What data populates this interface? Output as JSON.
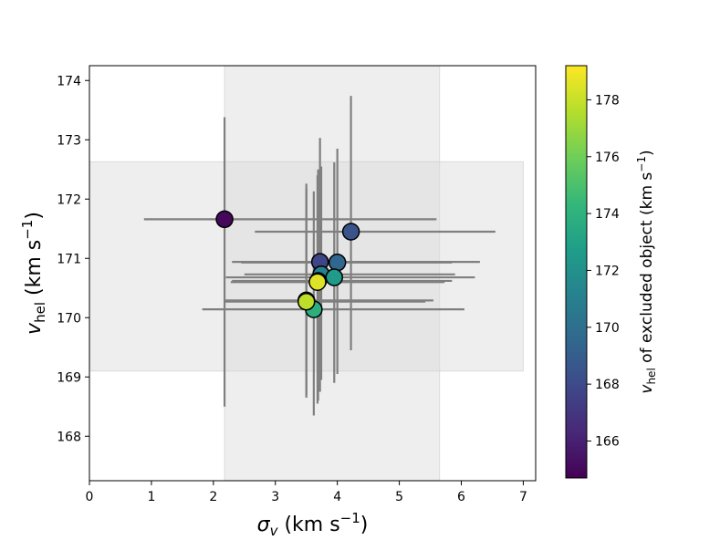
{
  "chart_data": {
    "type": "scatter",
    "xlabel": {
      "symbol": "σ",
      "sub": "v",
      "units_pre": "(km s",
      "units_sup": "−1",
      "units_post": ")"
    },
    "ylabel": {
      "symbol": "v",
      "sub": "hel",
      "units_pre": "(km s",
      "units_sup": "−1",
      "units_post": ")"
    },
    "xlim": [
      0,
      7.2
    ],
    "ylim": [
      167.25,
      174.25
    ],
    "x_ticks": [
      0,
      1,
      2,
      3,
      4,
      5,
      6,
      7
    ],
    "y_ticks": [
      168,
      169,
      170,
      171,
      172,
      173,
      174
    ],
    "shaded_regions": {
      "x_band": [
        2.18,
        5.65
      ],
      "y_band": [
        169.1,
        172.63
      ]
    },
    "colorbar": {
      "colormap": "viridis",
      "range": [
        164.7,
        179.2
      ],
      "ticks": [
        166,
        168,
        170,
        172,
        174,
        176,
        178
      ],
      "label": {
        "symbol": "v",
        "sub": "hel",
        "text": " of excluded object (km s",
        "sup": "−1",
        "post": ")"
      }
    },
    "points": [
      {
        "x": 2.18,
        "y": 171.66,
        "xerr": [
          0.88,
          5.6
        ],
        "yerr": [
          168.5,
          173.38
        ],
        "c": 165.0
      },
      {
        "x": 4.22,
        "y": 171.45,
        "xerr": [
          2.67,
          6.55
        ],
        "yerr": [
          169.45,
          173.74
        ],
        "c": 168.5
      },
      {
        "x": 3.72,
        "y": 170.94,
        "xerr": [
          2.3,
          6.3
        ],
        "yerr": [
          168.75,
          173.03
        ],
        "c": 167.8
      },
      {
        "x": 4.0,
        "y": 170.93,
        "xerr": [
          2.45,
          5.85
        ],
        "yerr": [
          169.05,
          172.85
        ],
        "c": 169.5
      },
      {
        "x": 3.74,
        "y": 170.73,
        "xerr": [
          2.5,
          5.9
        ],
        "yerr": [
          168.95,
          172.55
        ],
        "c": 171.0
      },
      {
        "x": 3.95,
        "y": 170.68,
        "xerr": [
          2.2,
          6.22
        ],
        "yerr": [
          168.9,
          172.62
        ],
        "c": 172.6
      },
      {
        "x": 3.69,
        "y": 170.62,
        "xerr": [
          2.3,
          5.85
        ],
        "yerr": [
          168.6,
          172.5
        ],
        "c": 176.5
      },
      {
        "x": 3.68,
        "y": 170.6,
        "xerr": [
          2.28,
          5.73
        ],
        "yerr": [
          168.55,
          172.4
        ],
        "c": 178.5
      },
      {
        "x": 3.62,
        "y": 170.14,
        "xerr": [
          1.82,
          6.05
        ],
        "yerr": [
          168.35,
          172.13
        ],
        "c": 173.8
      },
      {
        "x": 3.5,
        "y": 170.29,
        "xerr": [
          2.18,
          5.55
        ],
        "yerr": [
          168.7,
          172.26
        ],
        "c": 175.8
      },
      {
        "x": 3.5,
        "y": 170.27,
        "xerr": [
          2.18,
          5.42
        ],
        "yerr": [
          168.65,
          172.18
        ],
        "c": 177.8
      }
    ]
  }
}
